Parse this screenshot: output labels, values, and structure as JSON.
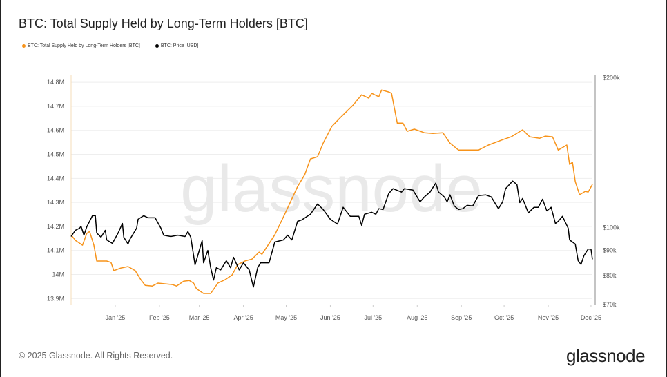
{
  "title": "BTC: Total Supply Held by Long-Term Holders [BTC]",
  "footer": "© 2025 Glassnode. All Rights Reserved.",
  "logo": "glassnode",
  "watermark": "glassnode",
  "chart_data": {
    "type": "line",
    "title": "BTC: Total Supply Held by Long-Term Holders [BTC]",
    "x_unit": "days since 2024-12-01",
    "xlim": [
      0,
      366
    ],
    "x_ticks": [
      {
        "day": 31,
        "label": "Jan '25"
      },
      {
        "day": 62,
        "label": "Feb '25"
      },
      {
        "day": 90,
        "label": "Mar '25"
      },
      {
        "day": 121,
        "label": "Apr '25"
      },
      {
        "day": 151,
        "label": "May '25"
      },
      {
        "day": 182,
        "label": "Jun '25"
      },
      {
        "day": 212,
        "label": "Jul '25"
      },
      {
        "day": 243,
        "label": "Aug '25"
      },
      {
        "day": 274,
        "label": "Sep '25"
      },
      {
        "day": 304,
        "label": "Oct '25"
      },
      {
        "day": 335,
        "label": "Nov '25"
      },
      {
        "day": 365,
        "label": "Dec '25"
      }
    ],
    "left_axis": {
      "ylim": [
        13.875,
        14.832
      ],
      "unit": "M BTC",
      "ticks": [
        {
          "v": 14.8,
          "label": "14.8M"
        },
        {
          "v": 14.7,
          "label": "14.7M"
        },
        {
          "v": 14.6,
          "label": "14.6M"
        },
        {
          "v": 14.5,
          "label": "14.5M"
        },
        {
          "v": 14.4,
          "label": "14.4M"
        },
        {
          "v": 14.3,
          "label": "14.3M"
        },
        {
          "v": 14.2,
          "label": "14.2M"
        },
        {
          "v": 14.1,
          "label": "14.1M"
        },
        {
          "v": 14.0,
          "label": "14M"
        },
        {
          "v": 13.9,
          "label": "13.9M"
        }
      ]
    },
    "right_axis": {
      "scale": "log",
      "ylim": [
        70,
        203
      ],
      "unit": "k USD",
      "ticks": [
        {
          "v": 200,
          "label": "$200k"
        },
        {
          "v": 100,
          "label": "$100k"
        },
        {
          "v": 90,
          "label": "$90k"
        },
        {
          "v": 80,
          "label": "$80k"
        },
        {
          "v": 70,
          "label": "$70k"
        }
      ]
    },
    "grid": true,
    "legend_position": "top-left",
    "series": [
      {
        "name": "BTC: Total Supply Held by Long-Term Holders [BTC]",
        "axis": "left",
        "color": "#f7931a",
        "points": [
          [
            0,
            14.165
          ],
          [
            3,
            14.142
          ],
          [
            6,
            14.13
          ],
          [
            8,
            14.122
          ],
          [
            11,
            14.171
          ],
          [
            13,
            14.179
          ],
          [
            16,
            14.122
          ],
          [
            18,
            14.056
          ],
          [
            25,
            14.056
          ],
          [
            28,
            14.05
          ],
          [
            30,
            14.016
          ],
          [
            35,
            14.027
          ],
          [
            40,
            14.033
          ],
          [
            45,
            14.016
          ],
          [
            49,
            13.978
          ],
          [
            52,
            13.955
          ],
          [
            57,
            13.952
          ],
          [
            61,
            13.964
          ],
          [
            71,
            13.958
          ],
          [
            74,
            13.952
          ],
          [
            79,
            13.972
          ],
          [
            83,
            13.975
          ],
          [
            86,
            13.964
          ],
          [
            88,
            13.941
          ],
          [
            93,
            13.921
          ],
          [
            98,
            13.921
          ],
          [
            103,
            13.964
          ],
          [
            108,
            13.978
          ],
          [
            113,
            13.998
          ],
          [
            117,
            14.041
          ],
          [
            122,
            14.056
          ],
          [
            127,
            14.064
          ],
          [
            132,
            14.093
          ],
          [
            134,
            14.084
          ],
          [
            143,
            14.165
          ],
          [
            150,
            14.251
          ],
          [
            159,
            14.366
          ],
          [
            164,
            14.415
          ],
          [
            168,
            14.481
          ],
          [
            173,
            14.49
          ],
          [
            177,
            14.547
          ],
          [
            183,
            14.616
          ],
          [
            189,
            14.653
          ],
          [
            198,
            14.705
          ],
          [
            204,
            14.748
          ],
          [
            209,
            14.734
          ],
          [
            211,
            14.754
          ],
          [
            216,
            14.74
          ],
          [
            218,
            14.768
          ],
          [
            223,
            14.76
          ],
          [
            225,
            14.754
          ],
          [
            227,
            14.691
          ],
          [
            229,
            14.63
          ],
          [
            233,
            14.63
          ],
          [
            236,
            14.596
          ],
          [
            241,
            14.605
          ],
          [
            248,
            14.59
          ],
          [
            254,
            14.587
          ],
          [
            261,
            14.59
          ],
          [
            266,
            14.547
          ],
          [
            272,
            14.518
          ],
          [
            279,
            14.518
          ],
          [
            286,
            14.518
          ],
          [
            293,
            14.539
          ],
          [
            303,
            14.561
          ],
          [
            309,
            14.573
          ],
          [
            317,
            14.602
          ],
          [
            322,
            14.573
          ],
          [
            329,
            14.567
          ],
          [
            333,
            14.576
          ],
          [
            338,
            14.573
          ],
          [
            342,
            14.518
          ],
          [
            348,
            14.539
          ],
          [
            350,
            14.458
          ],
          [
            352,
            14.467
          ],
          [
            354,
            14.386
          ],
          [
            357,
            14.332
          ],
          [
            361,
            14.346
          ],
          [
            363,
            14.343
          ],
          [
            366,
            14.375
          ]
        ]
      },
      {
        "name": "BTC: Price [USD]",
        "axis": "right",
        "color": "#000000",
        "points": [
          [
            0,
            95.9
          ],
          [
            3,
            98.7
          ],
          [
            6,
            99.7
          ],
          [
            7,
            100.6
          ],
          [
            9,
            96.5
          ],
          [
            11,
            100.3
          ],
          [
            15,
            105.6
          ],
          [
            17,
            105.6
          ],
          [
            18,
            97.5
          ],
          [
            21,
            95.6
          ],
          [
            24,
            98.7
          ],
          [
            25,
            94.4
          ],
          [
            29,
            92.9
          ],
          [
            33,
            97.5
          ],
          [
            36,
            101.9
          ],
          [
            37,
            95.6
          ],
          [
            40,
            92.6
          ],
          [
            41,
            94.4
          ],
          [
            46,
            99.7
          ],
          [
            47,
            103.9
          ],
          [
            51,
            105.6
          ],
          [
            54,
            104.6
          ],
          [
            59,
            104.6
          ],
          [
            63,
            99.7
          ],
          [
            65,
            96.5
          ],
          [
            70,
            95.9
          ],
          [
            75,
            96.5
          ],
          [
            80,
            95.9
          ],
          [
            82,
            98.1
          ],
          [
            84,
            95.6
          ],
          [
            87,
            84.1
          ],
          [
            92,
            94.1
          ],
          [
            93,
            84.9
          ],
          [
            96,
            89.9
          ],
          [
            98,
            83.0
          ],
          [
            100,
            78.4
          ],
          [
            102,
            83.0
          ],
          [
            105,
            82.2
          ],
          [
            109,
            85.7
          ],
          [
            112,
            83.0
          ],
          [
            114,
            87.1
          ],
          [
            118,
            82.2
          ],
          [
            121,
            84.9
          ],
          [
            125,
            82.2
          ],
          [
            128,
            75.9
          ],
          [
            131,
            83.0
          ],
          [
            133,
            84.9
          ],
          [
            139,
            84.9
          ],
          [
            143,
            93.5
          ],
          [
            149,
            94.4
          ],
          [
            152,
            96.5
          ],
          [
            155,
            94.4
          ],
          [
            159,
            102.9
          ],
          [
            162,
            103.6
          ],
          [
            168,
            106.3
          ],
          [
            173,
            111.5
          ],
          [
            177,
            108.7
          ],
          [
            182,
            103.9
          ],
          [
            187,
            101.6
          ],
          [
            191,
            109.8
          ],
          [
            196,
            105.3
          ],
          [
            202,
            105.3
          ],
          [
            204,
            101.0
          ],
          [
            206,
            106.3
          ],
          [
            211,
            107.3
          ],
          [
            214,
            106.3
          ],
          [
            216,
            109.1
          ],
          [
            219,
            108.7
          ],
          [
            223,
            117.0
          ],
          [
            226,
            119.7
          ],
          [
            232,
            117.8
          ],
          [
            234,
            119.7
          ],
          [
            240,
            118.9
          ],
          [
            245,
            112.6
          ],
          [
            248,
            115.2
          ],
          [
            252,
            117.8
          ],
          [
            256,
            122.8
          ],
          [
            258,
            117.8
          ],
          [
            262,
            115.2
          ],
          [
            264,
            112.6
          ],
          [
            266,
            116.3
          ],
          [
            269,
            110.5
          ],
          [
            272,
            108.7
          ],
          [
            275,
            109.1
          ],
          [
            278,
            110.8
          ],
          [
            282,
            110.5
          ],
          [
            286,
            115.9
          ],
          [
            291,
            116.3
          ],
          [
            295,
            115.2
          ],
          [
            300,
            109.1
          ],
          [
            303,
            112.6
          ],
          [
            305,
            119.7
          ],
          [
            310,
            124.0
          ],
          [
            313,
            122.0
          ],
          [
            315,
            112.2
          ],
          [
            317,
            114.4
          ],
          [
            321,
            107.0
          ],
          [
            325,
            109.8
          ],
          [
            328,
            109.8
          ],
          [
            331,
            114.0
          ],
          [
            334,
            108.0
          ],
          [
            337,
            109.8
          ],
          [
            340,
            101.9
          ],
          [
            342,
            102.9
          ],
          [
            345,
            105.3
          ],
          [
            349,
            99.7
          ],
          [
            350,
            94.4
          ],
          [
            354,
            92.6
          ],
          [
            356,
            85.7
          ],
          [
            358,
            84.3
          ],
          [
            360,
            87.7
          ],
          [
            363,
            90.5
          ],
          [
            365,
            90.5
          ],
          [
            366,
            86.3
          ]
        ]
      }
    ]
  }
}
